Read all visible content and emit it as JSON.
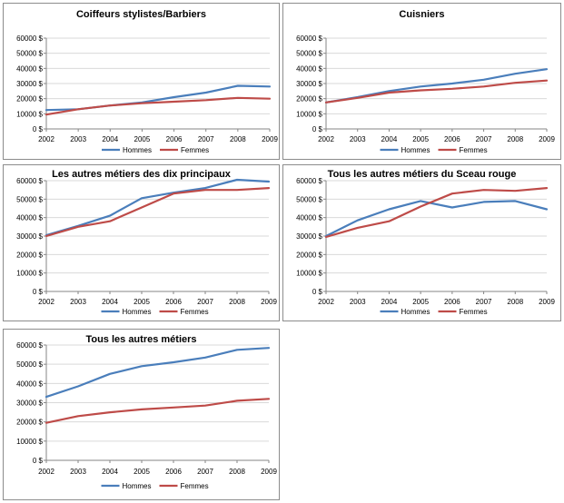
{
  "chart_data": [
    {
      "type": "line",
      "title": "Coiffeurs stylistes/Barbiers",
      "categories": [
        "2002",
        "2003",
        "2004",
        "2005",
        "2006",
        "2007",
        "2008",
        "2009"
      ],
      "y_ticks": [
        "0 $",
        "10000 $",
        "20000 $",
        "30000 $",
        "40000 $",
        "50000 $",
        "60000 $"
      ],
      "ylim": [
        0,
        60000
      ],
      "grid": true,
      "legend": "bottom",
      "series": [
        {
          "name": "Hommes",
          "color": "#4a7ebb",
          "values": [
            12500,
            13000,
            15500,
            17500,
            21000,
            24000,
            28500,
            28000
          ]
        },
        {
          "name": "Femmes",
          "color": "#be4b48",
          "values": [
            9500,
            13000,
            15500,
            17000,
            18000,
            19000,
            20500,
            20000
          ]
        }
      ]
    },
    {
      "type": "line",
      "title": "Cuisniers",
      "categories": [
        "2002",
        "2003",
        "2004",
        "2005",
        "2006",
        "2007",
        "2008",
        "2009"
      ],
      "y_ticks": [
        "0 $",
        "10000 $",
        "20000 $",
        "30000 $",
        "40000 $",
        "50000 $",
        "60000 $"
      ],
      "ylim": [
        0,
        60000
      ],
      "grid": true,
      "legend": "bottom",
      "series": [
        {
          "name": "Hommes",
          "color": "#4a7ebb",
          "values": [
            17500,
            21000,
            25000,
            28000,
            30000,
            32500,
            36500,
            39500
          ]
        },
        {
          "name": "Femmes",
          "color": "#be4b48",
          "values": [
            17500,
            20500,
            24000,
            25500,
            26500,
            28000,
            30500,
            32000
          ]
        }
      ]
    },
    {
      "type": "line",
      "title": "Les autres métiers des dix principaux",
      "categories": [
        "2002",
        "2003",
        "2004",
        "2005",
        "2006",
        "2007",
        "2008",
        "2009"
      ],
      "y_ticks": [
        "0 $",
        "10000 $",
        "20000 $",
        "30000 $",
        "40000 $",
        "50000 $",
        "60000 $"
      ],
      "ylim": [
        0,
        60000
      ],
      "grid": true,
      "legend": "bottom",
      "series": [
        {
          "name": "Hommes",
          "color": "#4a7ebb",
          "values": [
            30500,
            35500,
            41000,
            50500,
            53500,
            56000,
            60500,
            59500
          ]
        },
        {
          "name": "Femmes",
          "color": "#be4b48",
          "values": [
            30000,
            35000,
            38000,
            45500,
            53000,
            55000,
            55000,
            56000
          ]
        }
      ]
    },
    {
      "type": "line",
      "title": "Tous les autres métiers du Sceau rouge",
      "categories": [
        "2002",
        "2003",
        "2004",
        "2005",
        "2006",
        "2007",
        "2008",
        "2009"
      ],
      "y_ticks": [
        "0 $",
        "10000 $",
        "20000 $",
        "30000 $",
        "40000 $",
        "50000 $",
        "60000 $"
      ],
      "ylim": [
        0,
        60000
      ],
      "grid": true,
      "legend": "bottom",
      "series": [
        {
          "name": "Hommes",
          "color": "#4a7ebb",
          "values": [
            30000,
            38500,
            44500,
            49000,
            45500,
            48500,
            49000,
            44500
          ]
        },
        {
          "name": "Femmes",
          "color": "#be4b48",
          "values": [
            29500,
            34500,
            38000,
            46000,
            53000,
            55000,
            54500,
            56000
          ]
        }
      ]
    },
    {
      "type": "line",
      "title": "Tous les autres métiers",
      "categories": [
        "2002",
        "2003",
        "2004",
        "2005",
        "2006",
        "2007",
        "2008",
        "2009"
      ],
      "y_ticks": [
        "0 $",
        "10000 $",
        "20000 $",
        "30000 $",
        "40000 $",
        "50000 $",
        "60000 $"
      ],
      "ylim": [
        0,
        60000
      ],
      "grid": true,
      "legend": "bottom",
      "series": [
        {
          "name": "Hommes",
          "color": "#4a7ebb",
          "values": [
            33000,
            38500,
            45000,
            49000,
            51000,
            53500,
            57500,
            58500
          ]
        },
        {
          "name": "Femmes",
          "color": "#be4b48",
          "values": [
            19500,
            23000,
            25000,
            26500,
            27500,
            28500,
            31000,
            32000
          ]
        }
      ]
    }
  ]
}
